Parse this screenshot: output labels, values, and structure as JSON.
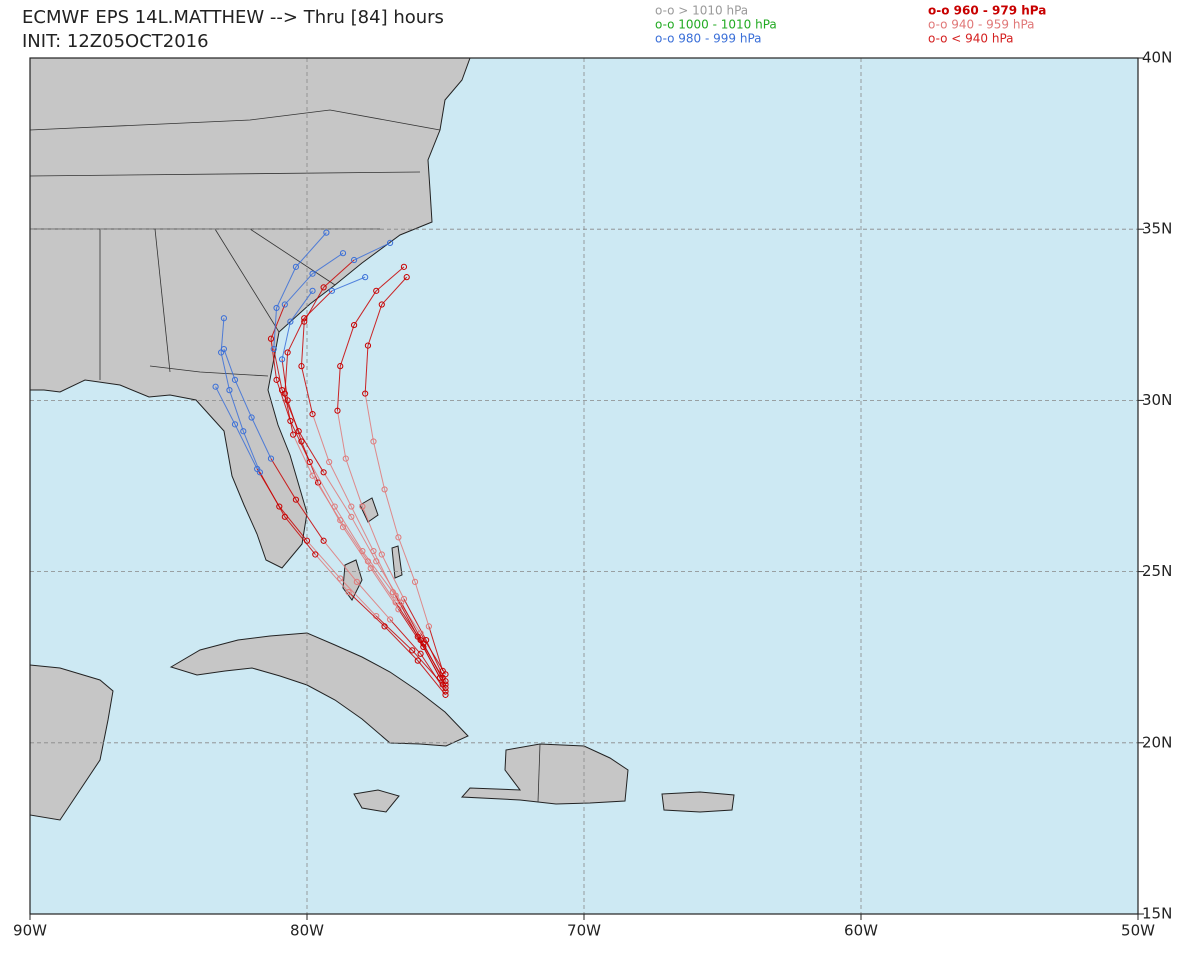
{
  "header": {
    "title": "ECMWF EPS 14L.MATTHEW --> Thru [84] hours",
    "init": "INIT: 12Z05OCT2016"
  },
  "legend": [
    {
      "label": "o-o > 1010 hPa",
      "color": "#9a9a9a"
    },
    {
      "label": "o-o 1000 - 1010 hPa",
      "color": "#22aa22"
    },
    {
      "label": "o-o 980 - 999 hPa",
      "color": "#3a6fd8"
    },
    {
      "label": "o-o 960 - 979 hPa",
      "color": "#c80000"
    },
    {
      "label": "o-o 940 - 959 hPa",
      "color": "#e07878"
    },
    {
      "label": "o-o < 940 hPa",
      "color": "#d42020"
    }
  ],
  "map": {
    "xlim": [
      -90,
      -50
    ],
    "ylim": [
      15,
      40
    ],
    "grid": true,
    "xticks": [
      {
        "value": -90,
        "label": "90W"
      },
      {
        "value": -80,
        "label": "80W"
      },
      {
        "value": -70,
        "label": "70W"
      },
      {
        "value": -60,
        "label": "60W"
      },
      {
        "value": -50,
        "label": "50W"
      }
    ],
    "yticks": [
      {
        "value": 40,
        "label": "40N"
      },
      {
        "value": 35,
        "label": "35N"
      },
      {
        "value": 30,
        "label": "30N"
      },
      {
        "value": 25,
        "label": "25N"
      },
      {
        "value": 20,
        "label": "20N"
      },
      {
        "value": 15,
        "label": "15N"
      }
    ],
    "tracks": [
      {
        "lon": [
          -75,
          -75.8,
          -76.7,
          -77.7,
          -78.7,
          -79.6,
          -80.2,
          -80.7,
          -80.9,
          -80.6,
          -79.8
        ],
        "lat": [
          21.6,
          22.8,
          23.9,
          25.1,
          26.3,
          27.6,
          28.8,
          30.0,
          31.2,
          32.3,
          33.2
        ],
        "class": [
          3,
          3,
          4,
          4,
          4,
          3,
          3,
          3,
          2,
          2,
          2
        ]
      },
      {
        "lon": [
          -75,
          -75.7,
          -76.5,
          -77.3,
          -78.0,
          -78.6,
          -78.9,
          -78.8,
          -78.3,
          -77.5,
          -76.5
        ],
        "lat": [
          21.8,
          23,
          24.2,
          25.5,
          26.9,
          28.3,
          29.7,
          31.0,
          32.2,
          33.2,
          33.9
        ],
        "class": [
          3,
          3,
          4,
          4,
          4,
          4,
          3,
          3,
          3,
          3,
          3
        ]
      },
      {
        "lon": [
          -75,
          -75.9,
          -77,
          -78.2,
          -79.4,
          -80.4,
          -81.3,
          -82,
          -82.6,
          -83
        ],
        "lat": [
          21.5,
          22.6,
          23.6,
          24.7,
          25.9,
          27.1,
          28.3,
          29.5,
          30.6,
          31.5
        ],
        "class": [
          3,
          3,
          4,
          4,
          3,
          3,
          2,
          2,
          2,
          2
        ]
      },
      {
        "lon": [
          -75.1,
          -76.2,
          -77.5,
          -78.8,
          -80.0,
          -81.0,
          -81.8,
          -82.6,
          -83.3
        ],
        "lat": [
          21.7,
          22.7,
          23.7,
          24.8,
          25.9,
          26.9,
          28,
          29.3,
          30.4
        ],
        "class": [
          3,
          3,
          4,
          4,
          3,
          3,
          2,
          2,
          2
        ]
      },
      {
        "lon": [
          -75,
          -75.9,
          -76.9,
          -78,
          -79,
          -79.9,
          -80.6,
          -81.1,
          -81.3,
          -80.8,
          -79.8,
          -78.7
        ],
        "lat": [
          22,
          23.2,
          24.4,
          25.6,
          26.9,
          28.2,
          29.4,
          30.6,
          31.8,
          32.8,
          33.7,
          34.3
        ],
        "class": [
          3,
          4,
          4,
          4,
          4,
          3,
          3,
          3,
          3,
          2,
          2,
          2
        ]
      },
      {
        "lon": [
          -75.2,
          -76,
          -76.8,
          -77.6,
          -78.4,
          -79.2,
          -79.8,
          -80.2,
          -80.1,
          -79.4,
          -78.3,
          -77
        ],
        "lat": [
          21.9,
          23.1,
          24.3,
          25.6,
          26.9,
          28.2,
          29.6,
          31.0,
          32.3,
          33.3,
          34.1,
          34.6
        ],
        "class": [
          3,
          3,
          4,
          4,
          4,
          4,
          3,
          3,
          3,
          3,
          2,
          2
        ]
      },
      {
        "lon": [
          -75,
          -75.8,
          -76.6,
          -77.5,
          -78.4,
          -79.4,
          -80.3,
          -80.9,
          -81.2,
          -81.1,
          -80.4,
          -79.3
        ],
        "lat": [
          21.7,
          22.9,
          24.1,
          25.3,
          26.6,
          27.9,
          29.1,
          30.3,
          31.5,
          32.7,
          33.9,
          34.9
        ],
        "class": [
          3,
          3,
          4,
          4,
          4,
          3,
          3,
          3,
          2,
          2,
          2,
          2
        ]
      },
      {
        "lon": [
          -75.1,
          -75.6,
          -76.1,
          -76.7,
          -77.2,
          -77.6,
          -77.9,
          -77.8,
          -77.3,
          -76.4
        ],
        "lat": [
          22.1,
          23.4,
          24.7,
          26,
          27.4,
          28.8,
          30.2,
          31.6,
          32.8,
          33.6
        ],
        "class": [
          3,
          4,
          4,
          4,
          4,
          4,
          3,
          3,
          3,
          3
        ]
      },
      {
        "lon": [
          -75,
          -76,
          -77.2,
          -78.5,
          -79.7,
          -80.8,
          -81.7,
          -82.3,
          -82.8,
          -83.1,
          -83
        ],
        "lat": [
          21.4,
          22.4,
          23.4,
          24.4,
          25.5,
          26.6,
          27.9,
          29.1,
          30.3,
          31.4,
          32.4
        ],
        "class": [
          3,
          3,
          3,
          4,
          3,
          3,
          2,
          2,
          2,
          2,
          2
        ]
      },
      {
        "lon": [
          -75.1,
          -75.9,
          -76.8,
          -77.8,
          -78.8,
          -79.8,
          -80.5,
          -80.8,
          -80.7,
          -80.1,
          -79.1,
          -77.9
        ],
        "lat": [
          21.9,
          23,
          24.1,
          25.3,
          26.5,
          27.8,
          29.0,
          30.2,
          31.4,
          32.4,
          33.2,
          33.6
        ],
        "class": [
          3,
          3,
          4,
          4,
          4,
          4,
          3,
          3,
          3,
          3,
          2,
          2
        ]
      }
    ]
  }
}
